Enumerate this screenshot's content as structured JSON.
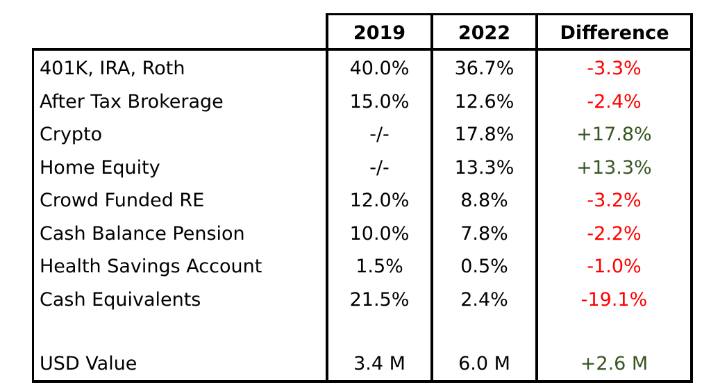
{
  "chart_data": {
    "type": "table",
    "columns": [
      "",
      "2019",
      "2022",
      "Difference"
    ],
    "rows": [
      {
        "label": "401K, IRA, Roth",
        "v2019": "40.0%",
        "v2022": "36.7%",
        "diff": "-3.3%",
        "sign": "neg"
      },
      {
        "label": "After Tax Brokerage",
        "v2019": "15.0%",
        "v2022": "12.6%",
        "diff": "-2.4%",
        "sign": "neg"
      },
      {
        "label": "Crypto",
        "v2019": "-/-",
        "v2022": "17.8%",
        "diff": "+17.8%",
        "sign": "pos"
      },
      {
        "label": "Home Equity",
        "v2019": "-/-",
        "v2022": "13.3%",
        "diff": "+13.3%",
        "sign": "pos"
      },
      {
        "label": "Crowd Funded RE",
        "v2019": "12.0%",
        "v2022": "8.8%",
        "diff": "-3.2%",
        "sign": "neg"
      },
      {
        "label": "Cash Balance Pension",
        "v2019": "10.0%",
        "v2022": "7.8%",
        "diff": "-2.2%",
        "sign": "neg"
      },
      {
        "label": "Health Savings Account",
        "v2019": "1.5%",
        "v2022": "0.5%",
        "diff": "-1.0%",
        "sign": "neg"
      },
      {
        "label": "Cash Equivalents",
        "v2019": "21.5%",
        "v2022": "2.4%",
        "diff": "-19.1%",
        "sign": "neg"
      }
    ],
    "total": {
      "label": "USD Value",
      "v2019": "3.4 M",
      "v2022": "6.0 M",
      "diff": "+2.6 M",
      "sign": "pos"
    },
    "colors": {
      "negative": "#ff0000",
      "positive": "#375623"
    }
  }
}
